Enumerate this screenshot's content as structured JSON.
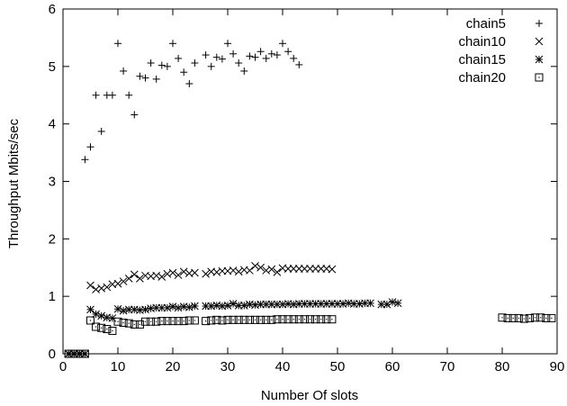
{
  "chart_data": {
    "type": "scatter",
    "title": "",
    "xlabel": "Number Of slots",
    "ylabel": "Throughput Mbits/sec",
    "xlim": [
      0,
      90
    ],
    "ylim": [
      0,
      6
    ],
    "xticks": [
      "0",
      "10",
      "20",
      "30",
      "40",
      "50",
      "60",
      "70",
      "80",
      "90"
    ],
    "yticks": [
      "0",
      "1",
      "2",
      "3",
      "4",
      "5",
      "6"
    ],
    "grid": false,
    "legend_position": "top-right",
    "series": [
      {
        "name": "chain5",
        "marker": "plus",
        "x": [
          1,
          2,
          3,
          4,
          5,
          6,
          7,
          8,
          9,
          10,
          11,
          12,
          13,
          14,
          15,
          16,
          17,
          18,
          19,
          20,
          21,
          22,
          23,
          24,
          26,
          27,
          28,
          29,
          30,
          31,
          32,
          33,
          34,
          35,
          36,
          37,
          38,
          39,
          40,
          41,
          42,
          43
        ],
        "y": [
          0,
          0,
          0,
          3.38,
          3.6,
          4.5,
          3.87,
          4.5,
          4.5,
          5.4,
          4.92,
          4.5,
          4.16,
          4.83,
          4.8,
          5.06,
          4.78,
          5.02,
          5.0,
          5.4,
          5.14,
          4.9,
          4.7,
          5.06,
          5.2,
          5.0,
          5.16,
          5.13,
          5.4,
          5.22,
          5.06,
          4.92,
          5.18,
          5.16,
          5.26,
          5.14,
          5.22,
          5.2,
          5.4,
          5.26,
          5.14,
          5.03
        ]
      },
      {
        "name": "chain10",
        "marker": "cross",
        "x": [
          1,
          2,
          3,
          4,
          5,
          6,
          7,
          8,
          9,
          10,
          11,
          12,
          13,
          14,
          15,
          16,
          17,
          18,
          19,
          20,
          21,
          22,
          23,
          24,
          26,
          27,
          28,
          29,
          30,
          31,
          32,
          33,
          34,
          35,
          36,
          37,
          38,
          39,
          40,
          41,
          42,
          43,
          44,
          45,
          46,
          47,
          48,
          49
        ],
        "y": [
          0,
          0,
          0,
          0,
          1.19,
          1.12,
          1.14,
          1.16,
          1.21,
          1.22,
          1.26,
          1.31,
          1.38,
          1.31,
          1.36,
          1.35,
          1.36,
          1.34,
          1.39,
          1.41,
          1.37,
          1.43,
          1.4,
          1.41,
          1.39,
          1.43,
          1.42,
          1.44,
          1.44,
          1.45,
          1.43,
          1.46,
          1.45,
          1.53,
          1.5,
          1.45,
          1.47,
          1.42,
          1.49,
          1.48,
          1.48,
          1.48,
          1.48,
          1.48,
          1.48,
          1.48,
          1.48,
          1.47
        ]
      },
      {
        "name": "chain15",
        "marker": "star",
        "x": [
          1,
          2,
          3,
          4,
          5,
          6,
          7,
          8,
          9,
          10,
          11,
          12,
          13,
          14,
          15,
          16,
          17,
          18,
          19,
          20,
          21,
          22,
          23,
          24,
          26,
          27,
          28,
          29,
          30,
          31,
          32,
          33,
          34,
          35,
          36,
          37,
          38,
          39,
          40,
          41,
          42,
          43,
          44,
          45,
          46,
          47,
          48,
          49,
          50,
          51,
          52,
          53,
          54,
          55,
          56,
          58,
          59,
          60,
          61
        ],
        "y": [
          0,
          0,
          0,
          0,
          0.77,
          0.69,
          0.66,
          0.63,
          0.62,
          0.78,
          0.75,
          0.77,
          0.77,
          0.76,
          0.77,
          0.79,
          0.8,
          0.8,
          0.8,
          0.82,
          0.8,
          0.82,
          0.81,
          0.83,
          0.83,
          0.83,
          0.84,
          0.83,
          0.84,
          0.87,
          0.84,
          0.84,
          0.86,
          0.85,
          0.86,
          0.86,
          0.86,
          0.86,
          0.86,
          0.87,
          0.86,
          0.87,
          0.87,
          0.87,
          0.87,
          0.87,
          0.87,
          0.87,
          0.87,
          0.87,
          0.88,
          0.87,
          0.87,
          0.88,
          0.88,
          0.86,
          0.86,
          0.9,
          0.88
        ]
      },
      {
        "name": "chain20",
        "marker": "square",
        "x": [
          1,
          2,
          3,
          4,
          5,
          6,
          7,
          8,
          9,
          10,
          11,
          12,
          13,
          14,
          15,
          16,
          17,
          18,
          19,
          20,
          21,
          22,
          23,
          24,
          26,
          27,
          28,
          29,
          30,
          31,
          32,
          33,
          34,
          35,
          36,
          37,
          38,
          39,
          40,
          41,
          42,
          43,
          44,
          45,
          46,
          47,
          48,
          49,
          80,
          81,
          82,
          83,
          84,
          85,
          86,
          87,
          88,
          89
        ],
        "y": [
          0,
          0,
          0,
          0,
          0.58,
          0.47,
          0.45,
          0.43,
          0.4,
          0.56,
          0.54,
          0.53,
          0.51,
          0.51,
          0.56,
          0.56,
          0.56,
          0.57,
          0.57,
          0.57,
          0.57,
          0.57,
          0.58,
          0.58,
          0.57,
          0.58,
          0.59,
          0.58,
          0.59,
          0.59,
          0.59,
          0.59,
          0.59,
          0.59,
          0.59,
          0.59,
          0.59,
          0.6,
          0.6,
          0.6,
          0.6,
          0.6,
          0.6,
          0.6,
          0.6,
          0.6,
          0.6,
          0.6,
          0.63,
          0.62,
          0.62,
          0.62,
          0.61,
          0.62,
          0.63,
          0.63,
          0.62,
          0.62
        ]
      }
    ]
  }
}
